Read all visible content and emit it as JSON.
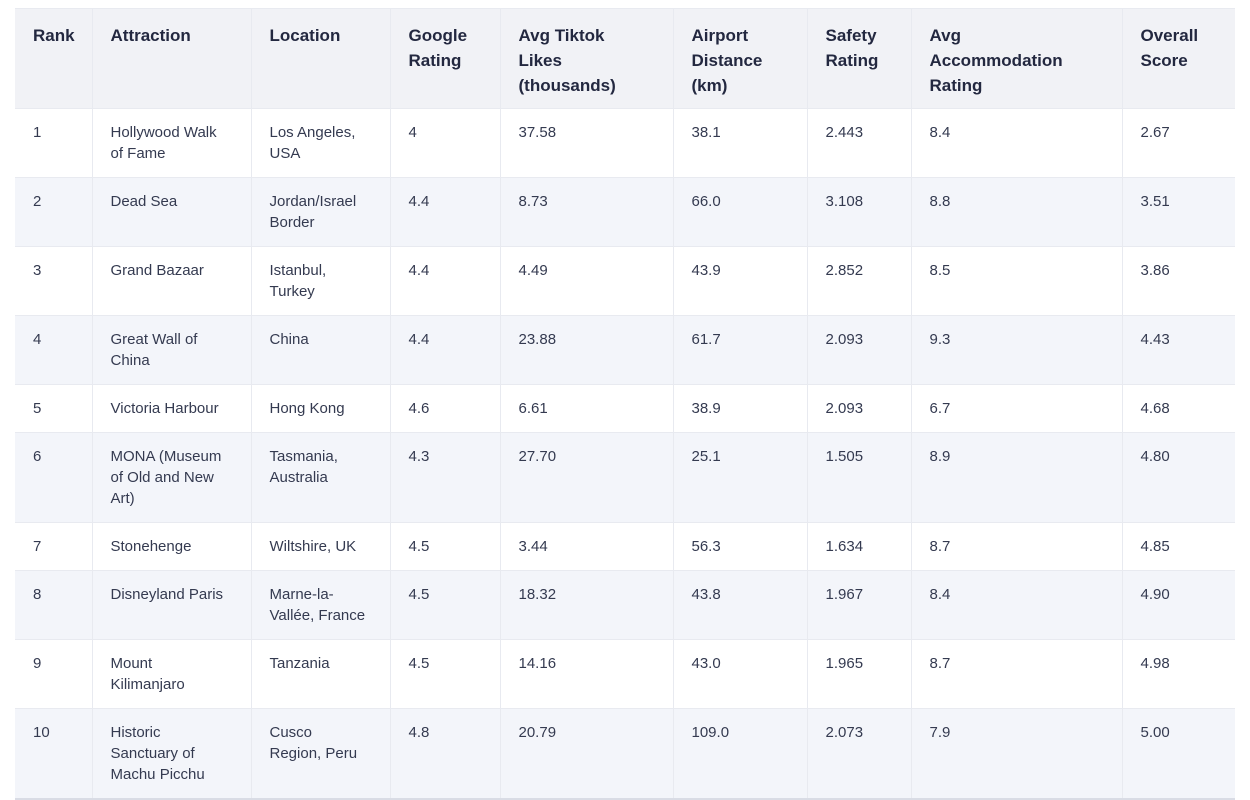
{
  "page": {
    "background": "#ffffff",
    "colors": {
      "header_background": "#f1f2f6",
      "alternate_row_background": "#f3f5fa",
      "border": "#e8eaf0",
      "header_text": "#232840",
      "body_text": "#343a50"
    }
  },
  "table": {
    "column_keys": [
      "rank",
      "attraction",
      "location",
      "google-rating",
      "tiktok-likes",
      "airport-distance",
      "safety-rating",
      "accommodation-rating",
      "overall-score"
    ]
  },
  "chart_data": {
    "type": "table",
    "title": "",
    "columns": [
      "Rank",
      "Attraction",
      "Location",
      "Google Rating",
      "Avg Tiktok Likes (thousands)",
      "Airport Distance (km)",
      "Safety Rating",
      "Avg Accommodation Rating",
      "Overall Score"
    ],
    "rows": [
      [
        "1",
        "Hollywood Walk of Fame",
        "Los Angeles, USA",
        "4",
        "37.58",
        "38.1",
        "2.443",
        "8.4",
        "2.67"
      ],
      [
        "2",
        "Dead Sea",
        "Jordan/Israel Border",
        "4.4",
        "8.73",
        "66.0",
        "3.108",
        "8.8",
        "3.51"
      ],
      [
        "3",
        "Grand Bazaar",
        "Istanbul, Turkey",
        "4.4",
        "4.49",
        "43.9",
        "2.852",
        "8.5",
        "3.86"
      ],
      [
        "4",
        "Great Wall of China",
        "China",
        "4.4",
        "23.88",
        "61.7",
        "2.093",
        "9.3",
        "4.43"
      ],
      [
        "5",
        "Victoria Harbour",
        "Hong Kong",
        "4.6",
        "6.61",
        "38.9",
        "2.093",
        "6.7",
        "4.68"
      ],
      [
        "6",
        "MONA (Museum of Old and New Art)",
        "Tasmania, Australia",
        "4.3",
        "27.70",
        "25.1",
        "1.505",
        "8.9",
        "4.80"
      ],
      [
        "7",
        "Stonehenge",
        "Wiltshire, UK",
        "4.5",
        "3.44",
        "56.3",
        "1.634",
        "8.7",
        "4.85"
      ],
      [
        "8",
        "Disneyland Paris",
        "Marne-la-Vallée, France",
        "4.5",
        "18.32",
        "43.8",
        "1.967",
        "8.4",
        "4.90"
      ],
      [
        "9",
        "Mount Kilimanjaro",
        "Tanzania",
        "4.5",
        "14.16",
        "43.0",
        "1.965",
        "8.7",
        "4.98"
      ],
      [
        "10",
        "Historic Sanctuary of Machu Picchu",
        "Cusco Region, Peru",
        "4.8",
        "20.79",
        "109.0",
        "2.073",
        "7.9",
        "5.00"
      ]
    ]
  }
}
